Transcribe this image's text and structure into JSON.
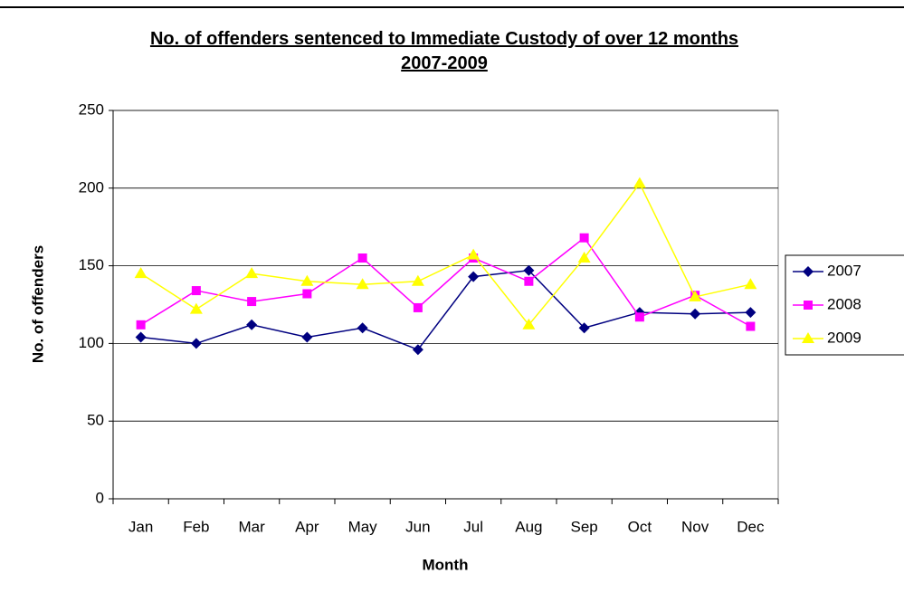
{
  "chart_data": {
    "type": "line",
    "title": "No. of offenders sentenced to Immediate Custody of over 12 months 2007-2009",
    "x_label": "Month",
    "y_label": "No. of offenders",
    "categories": [
      "Jan",
      "Feb",
      "Mar",
      "Apr",
      "May",
      "Jun",
      "Jul",
      "Aug",
      "Sep",
      "Oct",
      "Nov",
      "Dec"
    ],
    "series": [
      {
        "name": "2007",
        "color": "#000080",
        "marker": "diamond",
        "values": [
          104,
          100,
          112,
          104,
          110,
          96,
          143,
          147,
          110,
          120,
          119,
          120
        ]
      },
      {
        "name": "2008",
        "color": "#ff00ff",
        "marker": "square",
        "values": [
          112,
          134,
          127,
          132,
          155,
          123,
          155,
          140,
          168,
          117,
          131,
          111
        ]
      },
      {
        "name": "2009",
        "color": "#ffff00",
        "marker": "triangle",
        "values": [
          145,
          122,
          145,
          140,
          138,
          140,
          157,
          112,
          155,
          203,
          130,
          138
        ]
      }
    ],
    "ylim": [
      0,
      250
    ],
    "yticks": [
      0,
      50,
      100,
      150,
      200,
      250
    ],
    "grid": true,
    "legend": "right"
  }
}
